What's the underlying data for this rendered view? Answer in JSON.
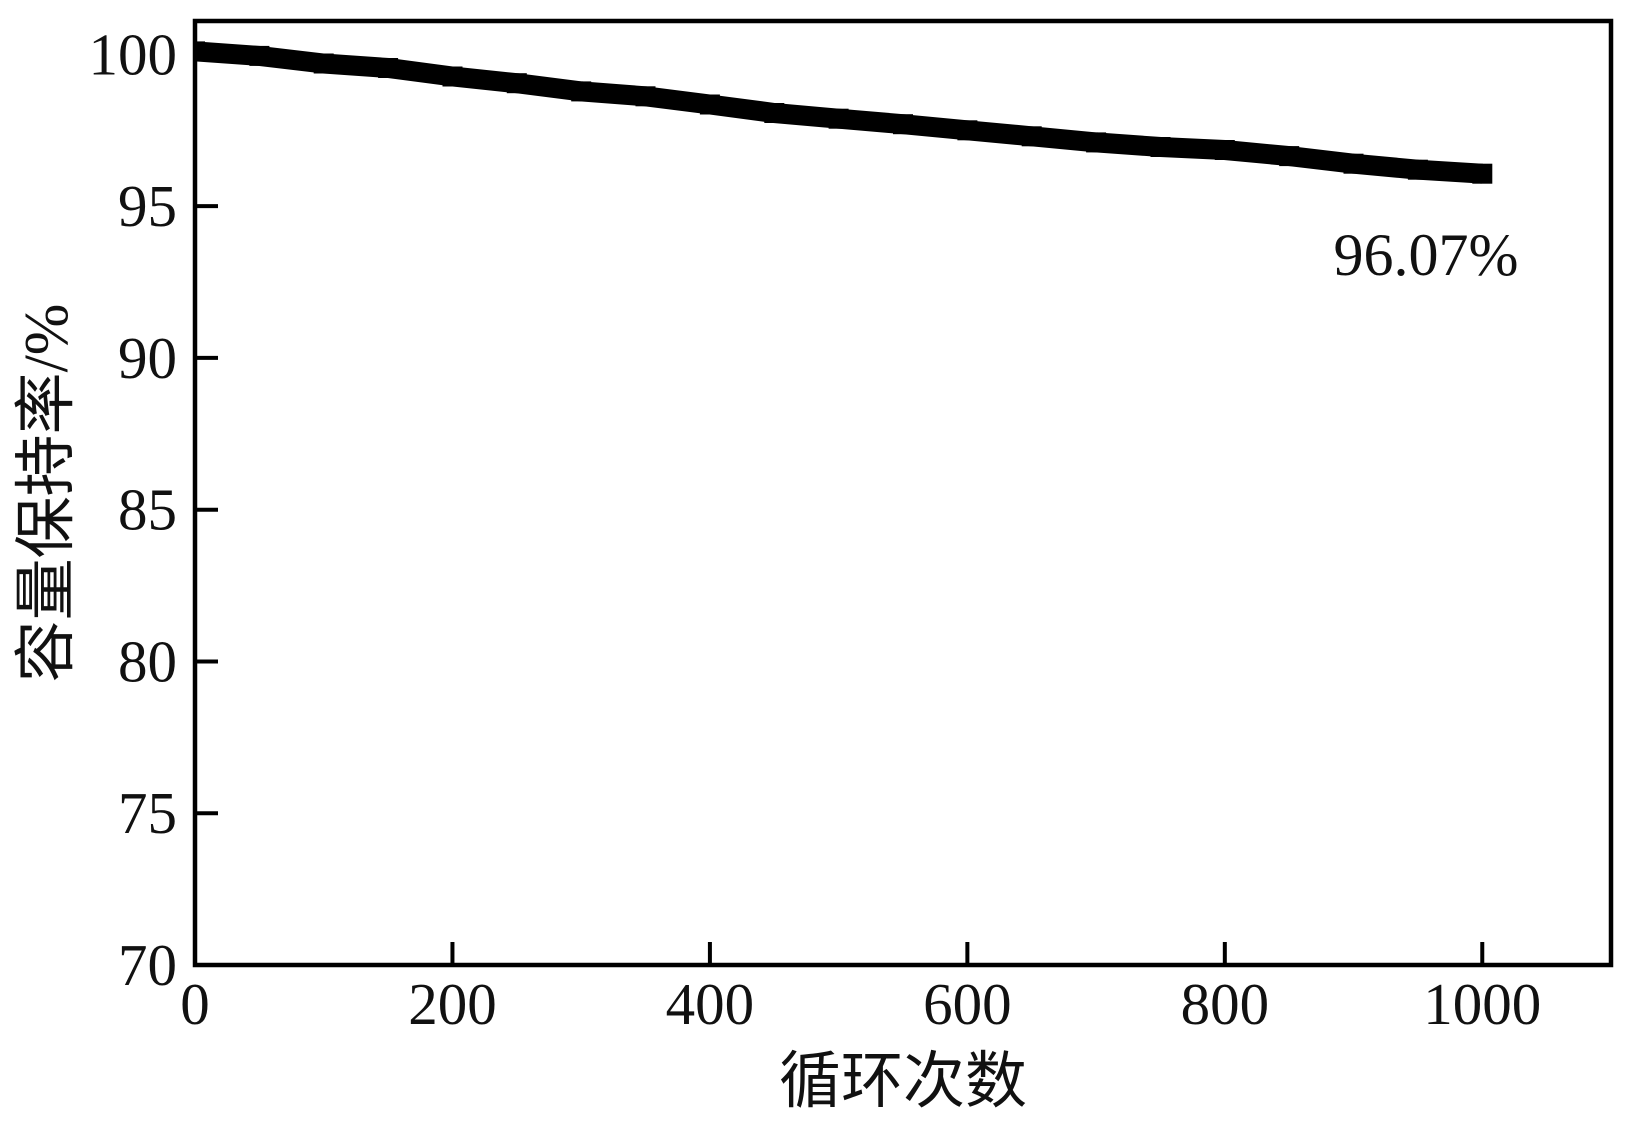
{
  "chart_data": {
    "type": "line",
    "xlabel": "循环次数",
    "ylabel": "容量保持率/%",
    "xlim": [
      0,
      1100
    ],
    "ylim": [
      70,
      101.1
    ],
    "xticks": [
      0,
      200,
      400,
      600,
      800,
      1000
    ],
    "yticks": [
      70,
      75,
      80,
      85,
      90,
      95,
      100
    ],
    "grid": false,
    "series": [
      {
        "color": "#000000",
        "x": [
          0,
          50,
          100,
          150,
          200,
          250,
          300,
          350,
          400,
          450,
          500,
          550,
          600,
          650,
          700,
          750,
          800,
          850,
          900,
          950,
          1000
        ],
        "y": [
          100.1,
          99.95,
          99.7,
          99.55,
          99.27,
          99.05,
          98.78,
          98.62,
          98.35,
          98.07,
          97.88,
          97.7,
          97.5,
          97.3,
          97.1,
          96.95,
          96.85,
          96.65,
          96.4,
          96.2,
          96.07
        ]
      }
    ],
    "annotations": [
      {
        "text": "96.07%"
      }
    ]
  }
}
